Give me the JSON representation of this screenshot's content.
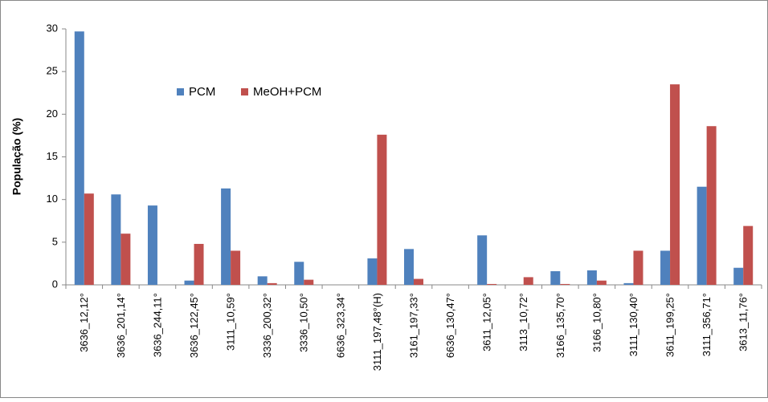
{
  "chart_data": {
    "type": "bar",
    "ylabel": "População (%)",
    "categories": [
      "3636_12,12°",
      "3636_201,14°",
      "3636_244,11°",
      "3636_122,45°",
      "3111_10,59°",
      "3336_200,32°",
      "3336_10,50°",
      "6636_323,34°",
      "3111_197,48°(H)",
      "3161_197,33°",
      "6636_130,47°",
      "3611_12,05°",
      "3113_10,72°",
      "3166_135,70°",
      "3166_10,80°",
      "3111_130,40°",
      "3611_199,25°",
      "3111_356,71°",
      "3613_11,76°"
    ],
    "series": [
      {
        "name": "PCM",
        "color": "#4f81bd",
        "values": [
          29.7,
          10.6,
          9.3,
          0.5,
          11.3,
          1.0,
          2.7,
          0,
          3.1,
          4.2,
          0,
          5.8,
          0,
          1.6,
          1.7,
          0.2,
          4.0,
          11.5,
          2.0
        ]
      },
      {
        "name": "MeOH+PCM",
        "color": "#c0504d",
        "values": [
          10.7,
          6.0,
          0,
          4.8,
          4.0,
          0.2,
          0.6,
          0,
          17.6,
          0.7,
          0,
          0.1,
          0.9,
          0.1,
          0.5,
          4.0,
          23.5,
          18.6,
          6.9
        ]
      }
    ],
    "ylim": [
      0,
      30
    ],
    "yticks": [
      0,
      5,
      10,
      15,
      20,
      25,
      30
    ],
    "grid": false
  }
}
